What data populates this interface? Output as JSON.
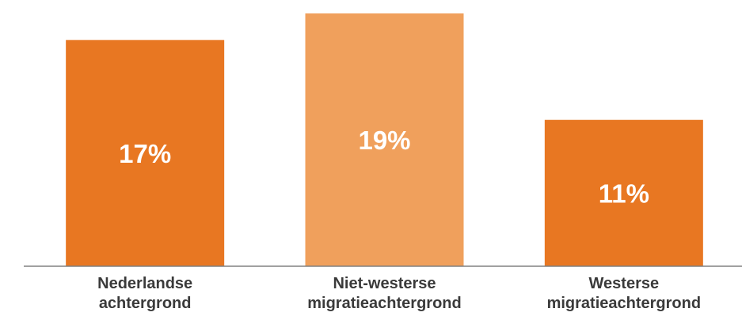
{
  "chart_data": {
    "type": "bar",
    "categories": [
      [
        "Nederlandse",
        "achtergrond"
      ],
      [
        "Niet-westerse",
        "migratieachtergrond"
      ],
      [
        "Westerse",
        "migratieachtergrond"
      ]
    ],
    "values": [
      17,
      19,
      11
    ],
    "data_labels": [
      "17%",
      "19%",
      "11%"
    ],
    "unit": "%",
    "ylim": [
      0,
      20
    ],
    "grid": false,
    "legend": "none",
    "bar_colors": [
      "#e87722",
      "#f0a05c",
      "#e87722"
    ]
  }
}
